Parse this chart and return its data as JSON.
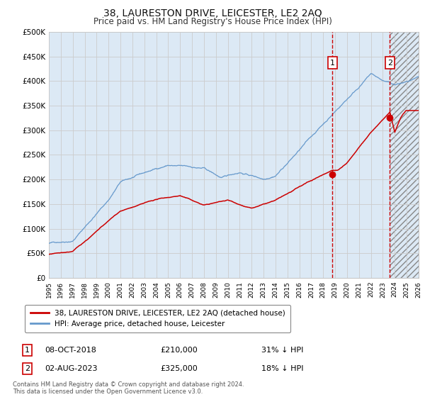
{
  "title": "38, LAURESTON DRIVE, LEICESTER, LE2 2AQ",
  "subtitle": "Price paid vs. HM Land Registry's House Price Index (HPI)",
  "legend_label_red": "38, LAURESTON DRIVE, LEICESTER, LE2 2AQ (detached house)",
  "legend_label_blue": "HPI: Average price, detached house, Leicester",
  "annotation1_label": "1",
  "annotation1_date": "08-OCT-2018",
  "annotation1_price": "£210,000",
  "annotation1_pct": "31% ↓ HPI",
  "annotation1_year": 2018.77,
  "annotation1_value": 210000,
  "annotation2_label": "2",
  "annotation2_date": "02-AUG-2023",
  "annotation2_price": "£325,000",
  "annotation2_pct": "18% ↓ HPI",
  "annotation2_year": 2023.58,
  "annotation2_value": 325000,
  "ylim": [
    0,
    500000
  ],
  "yticks": [
    0,
    50000,
    100000,
    150000,
    200000,
    250000,
    300000,
    350000,
    400000,
    450000,
    500000
  ],
  "xlim_start": 1995,
  "xlim_end": 2026,
  "background_color": "#ffffff",
  "plot_bg_color": "#dce9f5",
  "red_line_color": "#cc0000",
  "blue_line_color": "#6699cc",
  "dashed_line_color": "#cc0000",
  "grid_color": "#cccccc",
  "footer_text": "Contains HM Land Registry data © Crown copyright and database right 2024.\nThis data is licensed under the Open Government Licence v3.0."
}
